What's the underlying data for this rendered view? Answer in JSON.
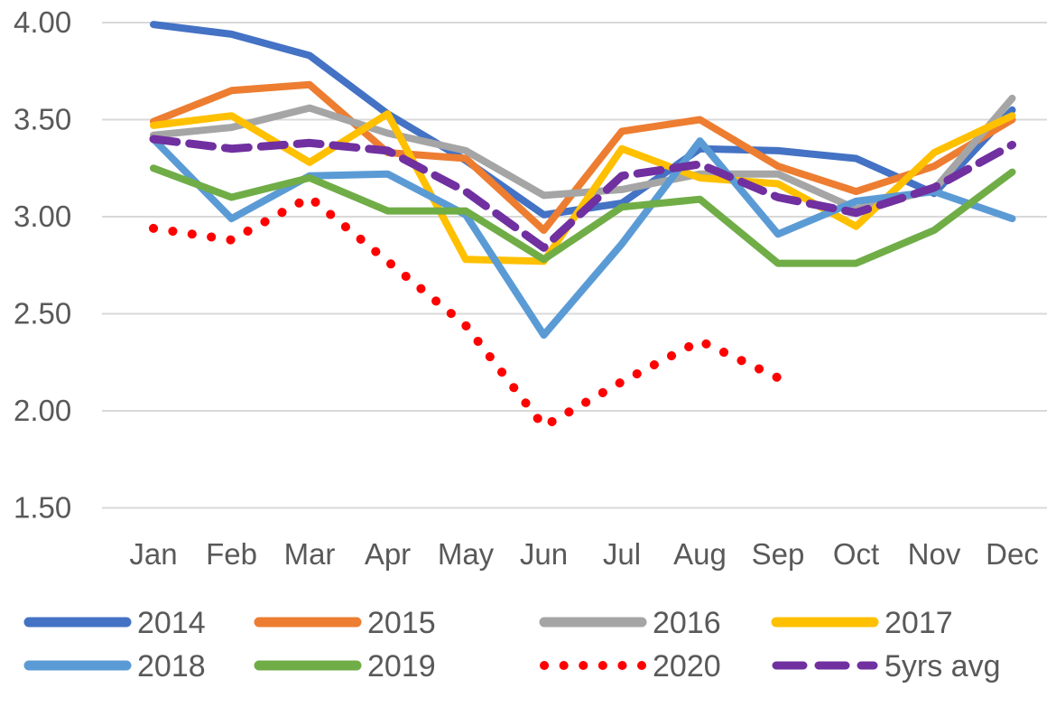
{
  "chart_data": {
    "type": "line",
    "title": "",
    "xlabel": "",
    "ylabel": "",
    "categories": [
      "Jan",
      "Feb",
      "Mar",
      "Apr",
      "May",
      "Jun",
      "Jul",
      "Aug",
      "Sep",
      "Oct",
      "Nov",
      "Dec"
    ],
    "y_axis": {
      "min": 1.5,
      "max": 4.0,
      "tick_step": 0.5,
      "tick_labels": [
        "4.00",
        "3.50",
        "3.00",
        "2.50",
        "2.00",
        "1.50"
      ]
    },
    "grid": true,
    "legend_position": "bottom",
    "text_color": "#595959",
    "gridline_color": "#D9D9D9",
    "series": [
      {
        "name": "2014",
        "color": "#4472C4",
        "line_style": "solid",
        "values": [
          3.99,
          3.94,
          3.83,
          3.53,
          3.29,
          3.01,
          3.07,
          3.35,
          3.34,
          3.3,
          3.12,
          3.55
        ]
      },
      {
        "name": "2015",
        "color": "#ED7D31",
        "line_style": "solid",
        "values": [
          3.49,
          3.65,
          3.68,
          3.33,
          3.3,
          2.93,
          3.44,
          3.5,
          3.26,
          3.13,
          3.26,
          3.5
        ]
      },
      {
        "name": "2016",
        "color": "#A5A5A5",
        "line_style": "solid",
        "values": [
          3.42,
          3.46,
          3.56,
          3.43,
          3.34,
          3.11,
          3.14,
          3.22,
          3.22,
          3.04,
          3.14,
          3.61
        ]
      },
      {
        "name": "2017",
        "color": "#FFC000",
        "line_style": "solid",
        "values": [
          3.47,
          3.52,
          3.28,
          3.53,
          2.78,
          2.77,
          3.35,
          3.2,
          3.17,
          2.95,
          3.33,
          3.52
        ]
      },
      {
        "name": "2018",
        "color": "#5B9BD5",
        "line_style": "solid",
        "values": [
          3.4,
          2.99,
          3.21,
          3.22,
          3.01,
          2.39,
          2.86,
          3.39,
          2.91,
          3.08,
          3.13,
          2.99
        ]
      },
      {
        "name": "2019",
        "color": "#70AD47",
        "line_style": "solid",
        "values": [
          3.25,
          3.1,
          3.2,
          3.03,
          3.03,
          2.78,
          3.05,
          3.09,
          2.76,
          2.76,
          2.93,
          3.23
        ]
      },
      {
        "name": "2020",
        "color": "#FF0000",
        "line_style": "dotted",
        "values": [
          2.94,
          2.88,
          3.1,
          2.77,
          2.44,
          1.92,
          2.15,
          2.36,
          2.17,
          null,
          null,
          null
        ]
      },
      {
        "name": "5yrs avg",
        "color": "#7030A0",
        "line_style": "dashed",
        "values": [
          3.4,
          3.35,
          3.38,
          3.34,
          3.13,
          2.84,
          3.21,
          3.27,
          3.1,
          3.02,
          3.15,
          3.37
        ]
      }
    ]
  },
  "legend": {
    "rows": [
      [
        "2014",
        "2015",
        "2016",
        "2017"
      ],
      [
        "2018",
        "2019",
        "2020",
        "5yrs avg"
      ]
    ]
  }
}
